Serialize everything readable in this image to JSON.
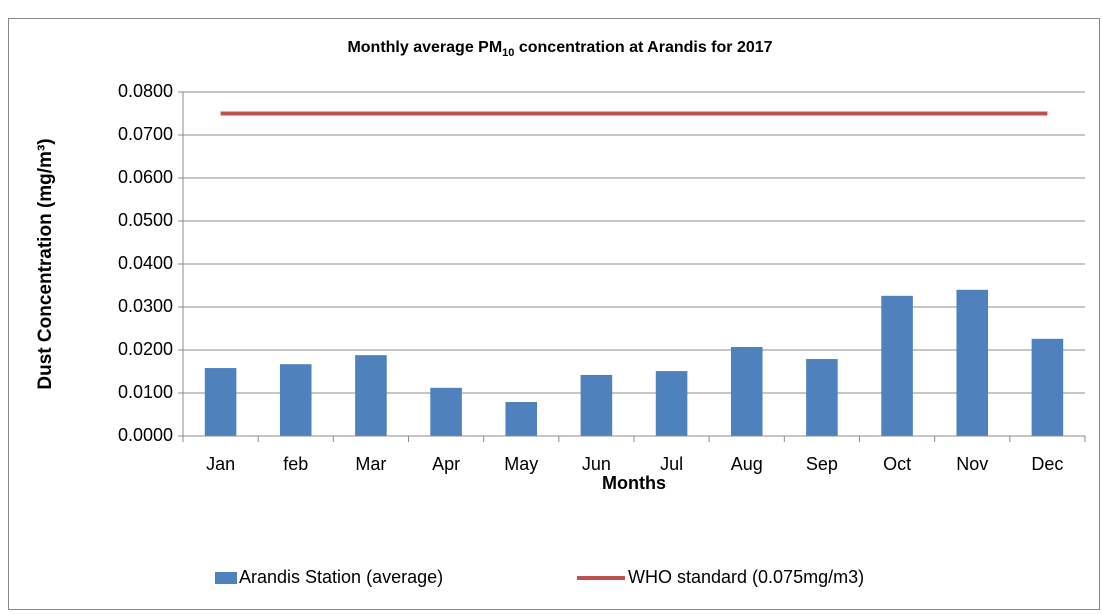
{
  "chart_data": {
    "type": "bar",
    "title": [
      "Monthly average PM",
      "10",
      " concentration at Arandis for 2017"
    ],
    "x_label": "Months",
    "y_label": "Dust Concentration (mg/m³)",
    "categories": [
      "Jan",
      "feb",
      "Mar",
      "Apr",
      "May",
      "Jun",
      "Jul",
      "Aug",
      "Sep",
      "Oct",
      "Nov",
      "Dec"
    ],
    "series": [
      {
        "name": "Arandis Station (average)",
        "color": "#4f81bd",
        "type": "bar",
        "values": [
          0.0158,
          0.0167,
          0.0188,
          0.0112,
          0.0079,
          0.0142,
          0.0151,
          0.0207,
          0.0179,
          0.0326,
          0.034,
          0.0226
        ]
      },
      {
        "name": "WHO standard (0.075mg/m3)",
        "color": "#c0504d",
        "type": "line",
        "values": [
          0.075,
          0.075,
          0.075,
          0.075,
          0.075,
          0.075,
          0.075,
          0.075,
          0.075,
          0.075,
          0.075,
          0.075
        ]
      }
    ],
    "ylim": [
      0,
      0.08
    ],
    "yticks": [
      {
        "value": 0,
        "label": "0.0000"
      },
      {
        "value": 0.01,
        "label": "0.0100"
      },
      {
        "value": 0.02,
        "label": "0.0200"
      },
      {
        "value": 0.03,
        "label": "0.0300"
      },
      {
        "value": 0.04,
        "label": "0.0400"
      },
      {
        "value": 0.05,
        "label": "0.0500"
      },
      {
        "value": 0.06,
        "label": "0.0600"
      },
      {
        "value": 0.07,
        "label": "0.0700"
      },
      {
        "value": 0.08,
        "label": "0.0800"
      }
    ],
    "grid": true,
    "legend": "bottom"
  }
}
